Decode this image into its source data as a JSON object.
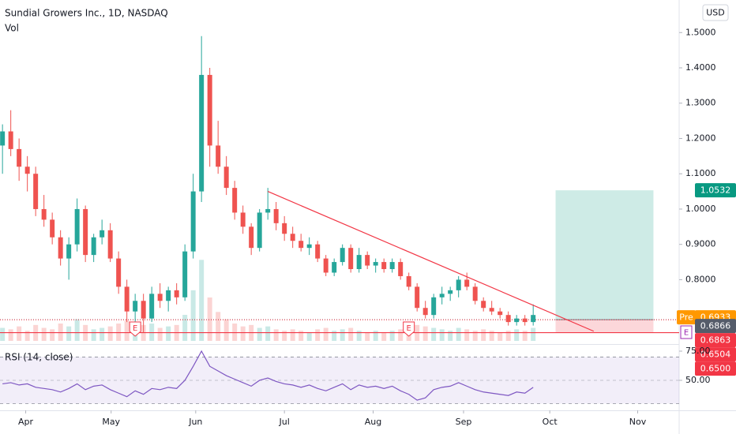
{
  "chart_data": {
    "type": "candlestick",
    "title": "Sundial Growers Inc., 1D, NASDAQ",
    "volume_label": "Vol",
    "currency": "USD",
    "up_color": "#26a69a",
    "down_color": "#ef5350",
    "ylim": [
      0.6177,
      1.5922
    ],
    "yticks": [
      {
        "value": 1.5,
        "label": "1.5000"
      },
      {
        "value": 1.4,
        "label": "1.4000"
      },
      {
        "value": 1.3,
        "label": "1.3000"
      },
      {
        "value": 1.2,
        "label": "1.2000"
      },
      {
        "value": 1.1,
        "label": "1.1000"
      },
      {
        "value": 1.0,
        "label": "1.0000"
      },
      {
        "value": 0.9,
        "label": "0.9000"
      },
      {
        "value": 0.8,
        "label": "0.8000"
      }
    ],
    "xlim": [
      -0.3,
      81.6
    ],
    "xticks": [
      {
        "value": 2.8,
        "label": "Apr"
      },
      {
        "value": 13.1,
        "label": "May"
      },
      {
        "value": 23.3,
        "label": "Jun"
      },
      {
        "value": 34,
        "label": "Jul"
      },
      {
        "value": 44.7,
        "label": "Aug"
      },
      {
        "value": 55.6,
        "label": "Sep"
      },
      {
        "value": 66,
        "label": "Oct"
      },
      {
        "value": 76.6,
        "label": "Nov"
      }
    ],
    "candles": [
      [
        1.18,
        1.24,
        1.1,
        1.22
      ],
      [
        1.22,
        1.28,
        1.15,
        1.17
      ],
      [
        1.17,
        1.2,
        1.08,
        1.12
      ],
      [
        1.12,
        1.15,
        1.05,
        1.1
      ],
      [
        1.1,
        1.12,
        0.98,
        1.0
      ],
      [
        1.0,
        1.04,
        0.95,
        0.97
      ],
      [
        0.97,
        0.99,
        0.9,
        0.92
      ],
      [
        0.92,
        0.94,
        0.84,
        0.86
      ],
      [
        0.86,
        0.92,
        0.8,
        0.9
      ],
      [
        0.9,
        1.03,
        0.88,
        1.0
      ],
      [
        1.0,
        1.01,
        0.85,
        0.87
      ],
      [
        0.87,
        0.93,
        0.85,
        0.92
      ],
      [
        0.92,
        0.97,
        0.9,
        0.94
      ],
      [
        0.94,
        0.96,
        0.85,
        0.86
      ],
      [
        0.86,
        0.88,
        0.76,
        0.78
      ],
      [
        0.78,
        0.8,
        0.68,
        0.71
      ],
      [
        0.71,
        0.76,
        0.68,
        0.74
      ],
      [
        0.74,
        0.76,
        0.65,
        0.69
      ],
      [
        0.69,
        0.78,
        0.68,
        0.76
      ],
      [
        0.76,
        0.79,
        0.72,
        0.74
      ],
      [
        0.74,
        0.78,
        0.71,
        0.77
      ],
      [
        0.77,
        0.79,
        0.73,
        0.75
      ],
      [
        0.75,
        0.9,
        0.74,
        0.88
      ],
      [
        0.88,
        1.1,
        0.86,
        1.05
      ],
      [
        1.05,
        1.49,
        1.02,
        1.38
      ],
      [
        1.38,
        1.4,
        1.12,
        1.18
      ],
      [
        1.18,
        1.25,
        1.1,
        1.12
      ],
      [
        1.12,
        1.15,
        1.04,
        1.06
      ],
      [
        1.06,
        1.08,
        0.97,
        0.99
      ],
      [
        0.99,
        1.01,
        0.93,
        0.95
      ],
      [
        0.95,
        0.96,
        0.87,
        0.89
      ],
      [
        0.89,
        1.0,
        0.88,
        0.99
      ],
      [
        0.99,
        1.06,
        0.97,
        1.0
      ],
      [
        1.0,
        1.02,
        0.94,
        0.96
      ],
      [
        0.96,
        0.98,
        0.91,
        0.93
      ],
      [
        0.93,
        0.95,
        0.89,
        0.91
      ],
      [
        0.91,
        0.93,
        0.88,
        0.89
      ],
      [
        0.89,
        0.92,
        0.87,
        0.9
      ],
      [
        0.9,
        0.91,
        0.85,
        0.86
      ],
      [
        0.86,
        0.87,
        0.81,
        0.82
      ],
      [
        0.82,
        0.86,
        0.81,
        0.85
      ],
      [
        0.85,
        0.9,
        0.84,
        0.89
      ],
      [
        0.89,
        0.9,
        0.82,
        0.83
      ],
      [
        0.83,
        0.89,
        0.82,
        0.87
      ],
      [
        0.87,
        0.88,
        0.83,
        0.84
      ],
      [
        0.84,
        0.86,
        0.82,
        0.85
      ],
      [
        0.85,
        0.86,
        0.82,
        0.83
      ],
      [
        0.83,
        0.86,
        0.82,
        0.85
      ],
      [
        0.85,
        0.86,
        0.8,
        0.81
      ],
      [
        0.81,
        0.82,
        0.77,
        0.78
      ],
      [
        0.78,
        0.79,
        0.71,
        0.72
      ],
      [
        0.72,
        0.74,
        0.69,
        0.7
      ],
      [
        0.7,
        0.76,
        0.69,
        0.75
      ],
      [
        0.75,
        0.78,
        0.73,
        0.76
      ],
      [
        0.76,
        0.78,
        0.74,
        0.77
      ],
      [
        0.77,
        0.81,
        0.75,
        0.8
      ],
      [
        0.8,
        0.82,
        0.77,
        0.78
      ],
      [
        0.78,
        0.79,
        0.73,
        0.74
      ],
      [
        0.74,
        0.75,
        0.71,
        0.72
      ],
      [
        0.72,
        0.74,
        0.7,
        0.71
      ],
      [
        0.71,
        0.72,
        0.69,
        0.7
      ],
      [
        0.7,
        0.71,
        0.67,
        0.68
      ],
      [
        0.68,
        0.7,
        0.67,
        0.69
      ],
      [
        0.69,
        0.7,
        0.67,
        0.68
      ],
      [
        0.68,
        0.73,
        0.67,
        0.7
      ]
    ],
    "volume": [
      90,
      80,
      100,
      70,
      110,
      90,
      80,
      120,
      100,
      150,
      110,
      80,
      90,
      100,
      120,
      140,
      100,
      110,
      120,
      90,
      100,
      110,
      180,
      350,
      560,
      300,
      200,
      150,
      120,
      100,
      110,
      90,
      100,
      80,
      70,
      80,
      70,
      60,
      80,
      90,
      70,
      80,
      90,
      70,
      60,
      70,
      60,
      70,
      80,
      90,
      110,
      100,
      90,
      80,
      70,
      90,
      80,
      70,
      80,
      70,
      60,
      70,
      80,
      70,
      90
    ],
    "volume_lim": [
      0,
      600
    ],
    "trendline": [
      [
        32,
        1.05
      ],
      [
        71.3,
        0.654
      ]
    ],
    "long_position": {
      "start": 66.7,
      "end": 78.5,
      "target": 1.0532,
      "entry": 0.6866,
      "stop": 0.65
    },
    "support_line": 0.65,
    "price_tags": [
      {
        "value": 1.0532,
        "label": "1.0532",
        "color": "#089981"
      },
      {
        "value": 0.6933,
        "label": "0.6933",
        "prefix": "Pre",
        "color": "#ff9800"
      },
      {
        "value": 0.6866,
        "label": "0.6866",
        "color": "#555c6a"
      },
      {
        "value": 0.6863,
        "label": "0.6863",
        "color": "#f23645"
      },
      {
        "value": 0.6504,
        "label": "0.6504",
        "color": "#f23645"
      },
      {
        "value": 0.65,
        "label": "0.6500",
        "color": "#f23645"
      }
    ],
    "earnings": [
      {
        "index": 16,
        "label": "E"
      },
      {
        "index": 49,
        "label": "E"
      }
    ],
    "earnings_axis_label": "E",
    "rsi": {
      "title": "RSI (14, close)",
      "color": "#7e57c2",
      "ylim": [
        24.3,
        80.4
      ],
      "yticks": [
        {
          "value": 75,
          "label": "75.00"
        },
        {
          "value": 50,
          "label": "50.00"
        }
      ],
      "bands": [
        70,
        30
      ],
      "values": [
        47,
        48,
        46,
        47,
        44,
        43,
        42,
        40,
        43,
        47,
        42,
        45,
        46,
        42,
        39,
        36,
        41,
        38,
        43,
        42,
        44,
        43,
        50,
        62,
        75,
        62,
        58,
        54,
        51,
        48,
        45,
        50,
        52,
        49,
        47,
        46,
        44,
        46,
        43,
        41,
        44,
        47,
        42,
        46,
        44,
        45,
        43,
        45,
        41,
        38,
        33,
        35,
        42,
        44,
        45,
        48,
        45,
        42,
        40,
        39,
        38,
        37,
        40,
        39,
        44
      ]
    }
  }
}
